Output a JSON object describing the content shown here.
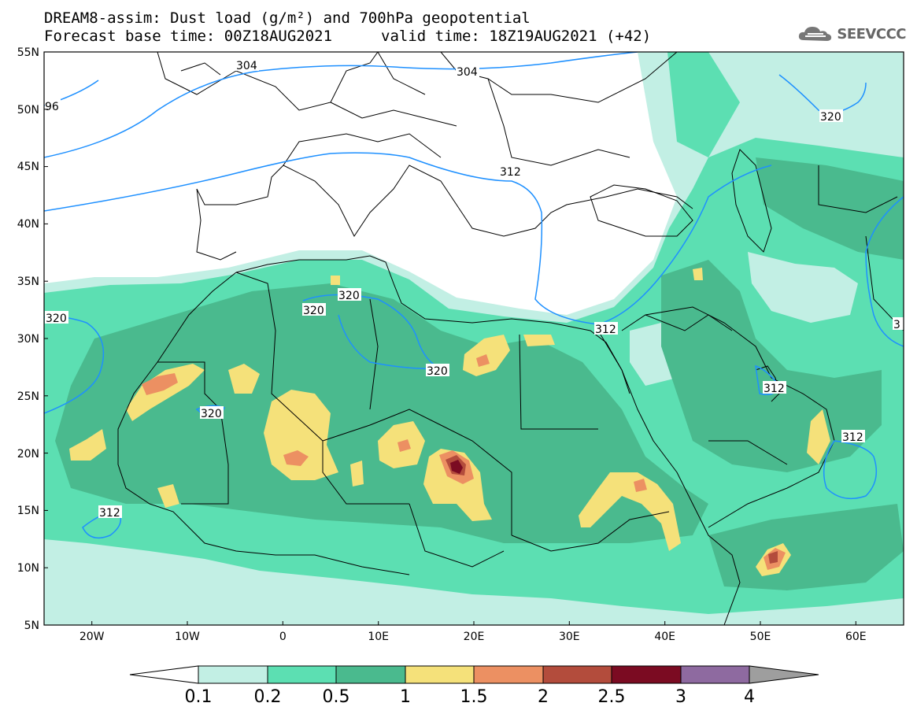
{
  "header": {
    "line1": "DREAM8-assim: Dust load (g/m²) and 700hPa geopotential",
    "base": "Forecast base time: 00Z18AUG2021",
    "valid": "valid time: 18Z19AUG2021 (+42)"
  },
  "logo": {
    "text": "SEEVCCC",
    "icon": "cloud-icon"
  },
  "axes": {
    "lat_labels": [
      "55N",
      "50N",
      "45N",
      "40N",
      "35N",
      "30N",
      "25N",
      "20N",
      "15N",
      "10N",
      "5N"
    ],
    "lon_labels": [
      "20W",
      "10W",
      "0",
      "10E",
      "20E",
      "30E",
      "40E",
      "50E",
      "60E"
    ]
  },
  "contour_labels": [
    "304",
    "304",
    "96",
    "320",
    "312",
    "320",
    "320",
    "320",
    "320",
    "312",
    "312",
    "320",
    "312",
    "312",
    "3"
  ],
  "colorbar": {
    "colors": [
      "#c2efe4",
      "#5cdfb2",
      "#4aba8e",
      "#f5e17a",
      "#ec9062",
      "#b34c3c",
      "#7b0b22",
      "#8e6aa0",
      "#9e9e9e"
    ],
    "labels": [
      "0.1",
      "0.2",
      "0.5",
      "1",
      "1.5",
      "2",
      "2.5",
      "3",
      "4"
    ]
  },
  "colors": {
    "contour": "#1e90ff",
    "border": "#000000"
  }
}
